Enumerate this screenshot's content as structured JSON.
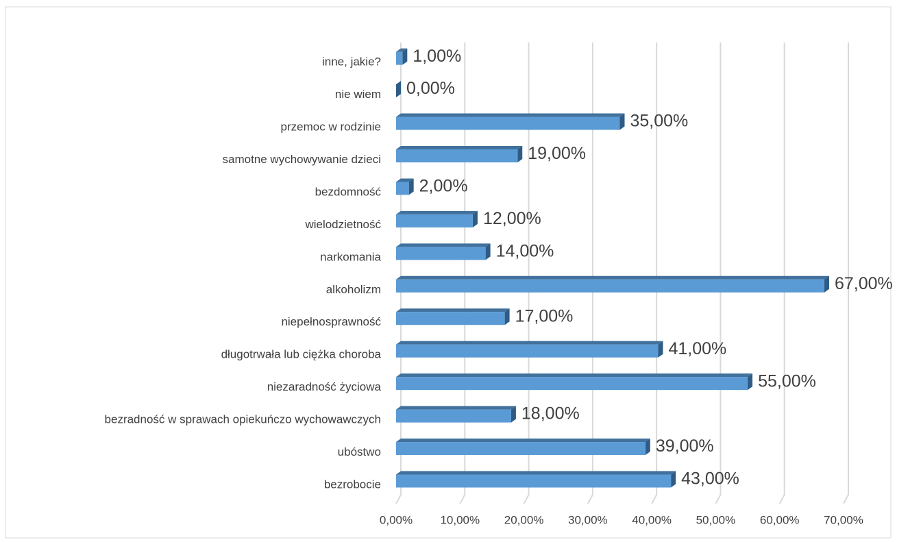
{
  "chart_data": {
    "type": "bar3d_horizontal",
    "categories": [
      "bezrobocie",
      "ubóstwo",
      "bezradność w sprawach opiekuńczo wychowawczych",
      "niezaradność życiowa",
      "długotrwała lub ciężka choroba",
      "niepełnosprawność",
      "alkoholizm",
      "narkomania",
      "wielodzietność",
      "bezdomność",
      "samotne wychowywanie dzieci",
      "przemoc w rodzinie",
      "nie wiem",
      "inne, jakie?"
    ],
    "values": [
      43,
      39,
      18,
      55,
      41,
      17,
      67,
      14,
      12,
      2,
      19,
      35,
      0,
      1
    ],
    "value_labels": [
      "43,00%",
      "39,00%",
      "18,00%",
      "55,00%",
      "41,00%",
      "17,00%",
      "67,00%",
      "14,00%",
      "12,00%",
      "2,00%",
      "19,00%",
      "35,00%",
      "0,00%",
      "1,00%"
    ],
    "color": "#5b9bd5",
    "xlim": [
      0,
      70
    ],
    "xticks": [
      {
        "value": 0,
        "label": "0,00%"
      },
      {
        "value": 10,
        "label": "10,00%"
      },
      {
        "value": 20,
        "label": "20,00%"
      },
      {
        "value": 30,
        "label": "30,00%"
      },
      {
        "value": 40,
        "label": "40,00%"
      },
      {
        "value": 50,
        "label": "50,00%"
      },
      {
        "value": 60,
        "label": "60,00%"
      },
      {
        "value": 70,
        "label": "70,00%"
      }
    ],
    "grid": true
  }
}
